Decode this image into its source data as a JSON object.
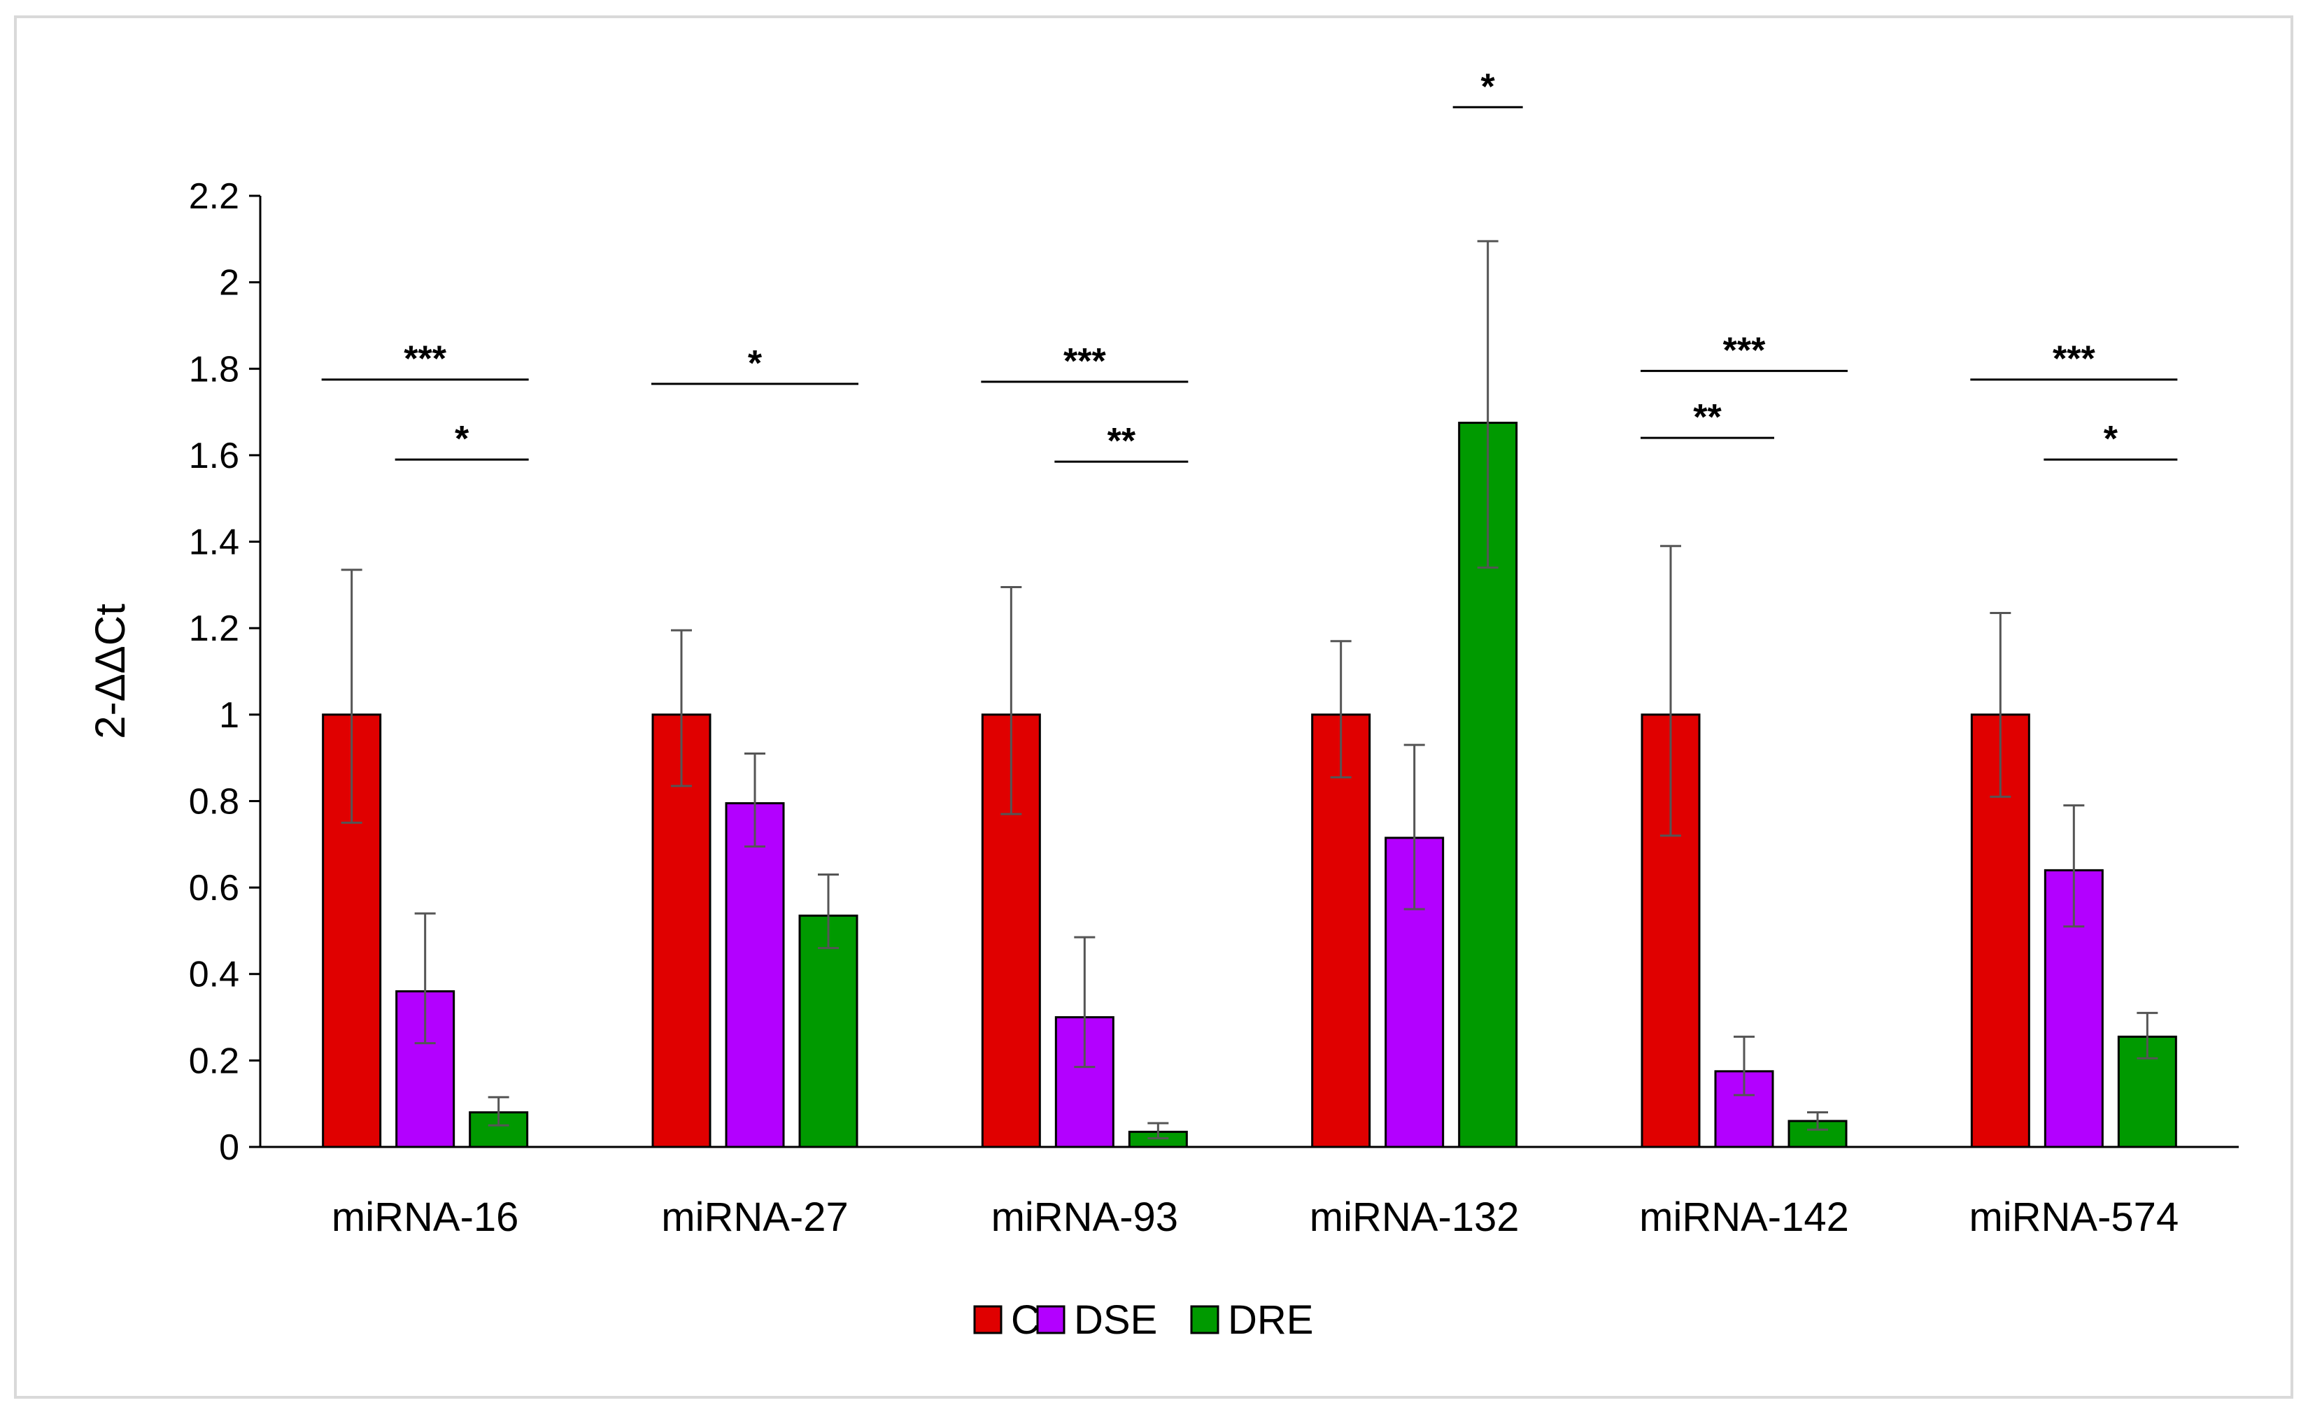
{
  "chart_data": {
    "type": "bar",
    "title": "",
    "xlabel": "",
    "ylabel": "2-ΔΔCt",
    "ylim": [
      0,
      2.2
    ],
    "yticks": [
      "0",
      "0.2",
      "0.4",
      "0.6",
      "0.8",
      "1",
      "1.2",
      "1.4",
      "1.6",
      "1.8",
      "2",
      "2.2"
    ],
    "grid": false,
    "legend_position": "bottom-center",
    "categories": [
      "miRNA-16",
      "miRNA-27",
      "miRNA-93",
      "miRNA-132",
      "miRNA-142",
      "miRNA-574"
    ],
    "series": [
      {
        "name": "C",
        "color": "#e00000",
        "values": [
          1.0,
          1.0,
          1.0,
          1.0,
          1.0,
          1.0
        ],
        "err_low": [
          0.75,
          0.835,
          0.77,
          0.855,
          0.72,
          0.81
        ],
        "err_high": [
          1.335,
          1.195,
          1.295,
          1.17,
          1.39,
          1.235
        ]
      },
      {
        "name": "DSE",
        "color": "#b300ff",
        "values": [
          0.36,
          0.795,
          0.3,
          0.715,
          0.175,
          0.64
        ],
        "err_low": [
          0.24,
          0.695,
          0.185,
          0.55,
          0.12,
          0.51
        ],
        "err_high": [
          0.54,
          0.91,
          0.485,
          0.93,
          0.255,
          0.79
        ]
      },
      {
        "name": "DRE",
        "color": "#009a00",
        "values": [
          0.08,
          0.535,
          0.035,
          1.675,
          0.06,
          0.255
        ],
        "err_low": [
          0.05,
          0.46,
          0.02,
          1.34,
          0.04,
          0.205
        ],
        "err_high": [
          0.115,
          0.63,
          0.055,
          2.095,
          0.08,
          0.31
        ]
      }
    ],
    "significance": [
      {
        "category": 0,
        "from": 0,
        "to": 2,
        "label": "***",
        "y": 1.775
      },
      {
        "category": 0,
        "from": 1,
        "to": 2,
        "label": "*",
        "y": 1.59
      },
      {
        "category": 1,
        "from": 0,
        "to": 2,
        "label": "*",
        "y": 1.765
      },
      {
        "category": 2,
        "from": 0,
        "to": 2,
        "label": "***",
        "y": 1.77
      },
      {
        "category": 2,
        "from": 1,
        "to": 2,
        "label": "**",
        "y": 1.585
      },
      {
        "category": 3,
        "from": 2,
        "to": 2,
        "label": "*",
        "y": 2.405
      },
      {
        "category": 4,
        "from": 0,
        "to": 2,
        "label": "***",
        "y": 1.795
      },
      {
        "category": 4,
        "from": 0,
        "to": 1,
        "label": "**",
        "y": 1.64
      },
      {
        "category": 5,
        "from": 0,
        "to": 2,
        "label": "***",
        "y": 1.775
      },
      {
        "category": 5,
        "from": 1,
        "to": 2,
        "label": "*",
        "y": 1.59
      }
    ]
  }
}
